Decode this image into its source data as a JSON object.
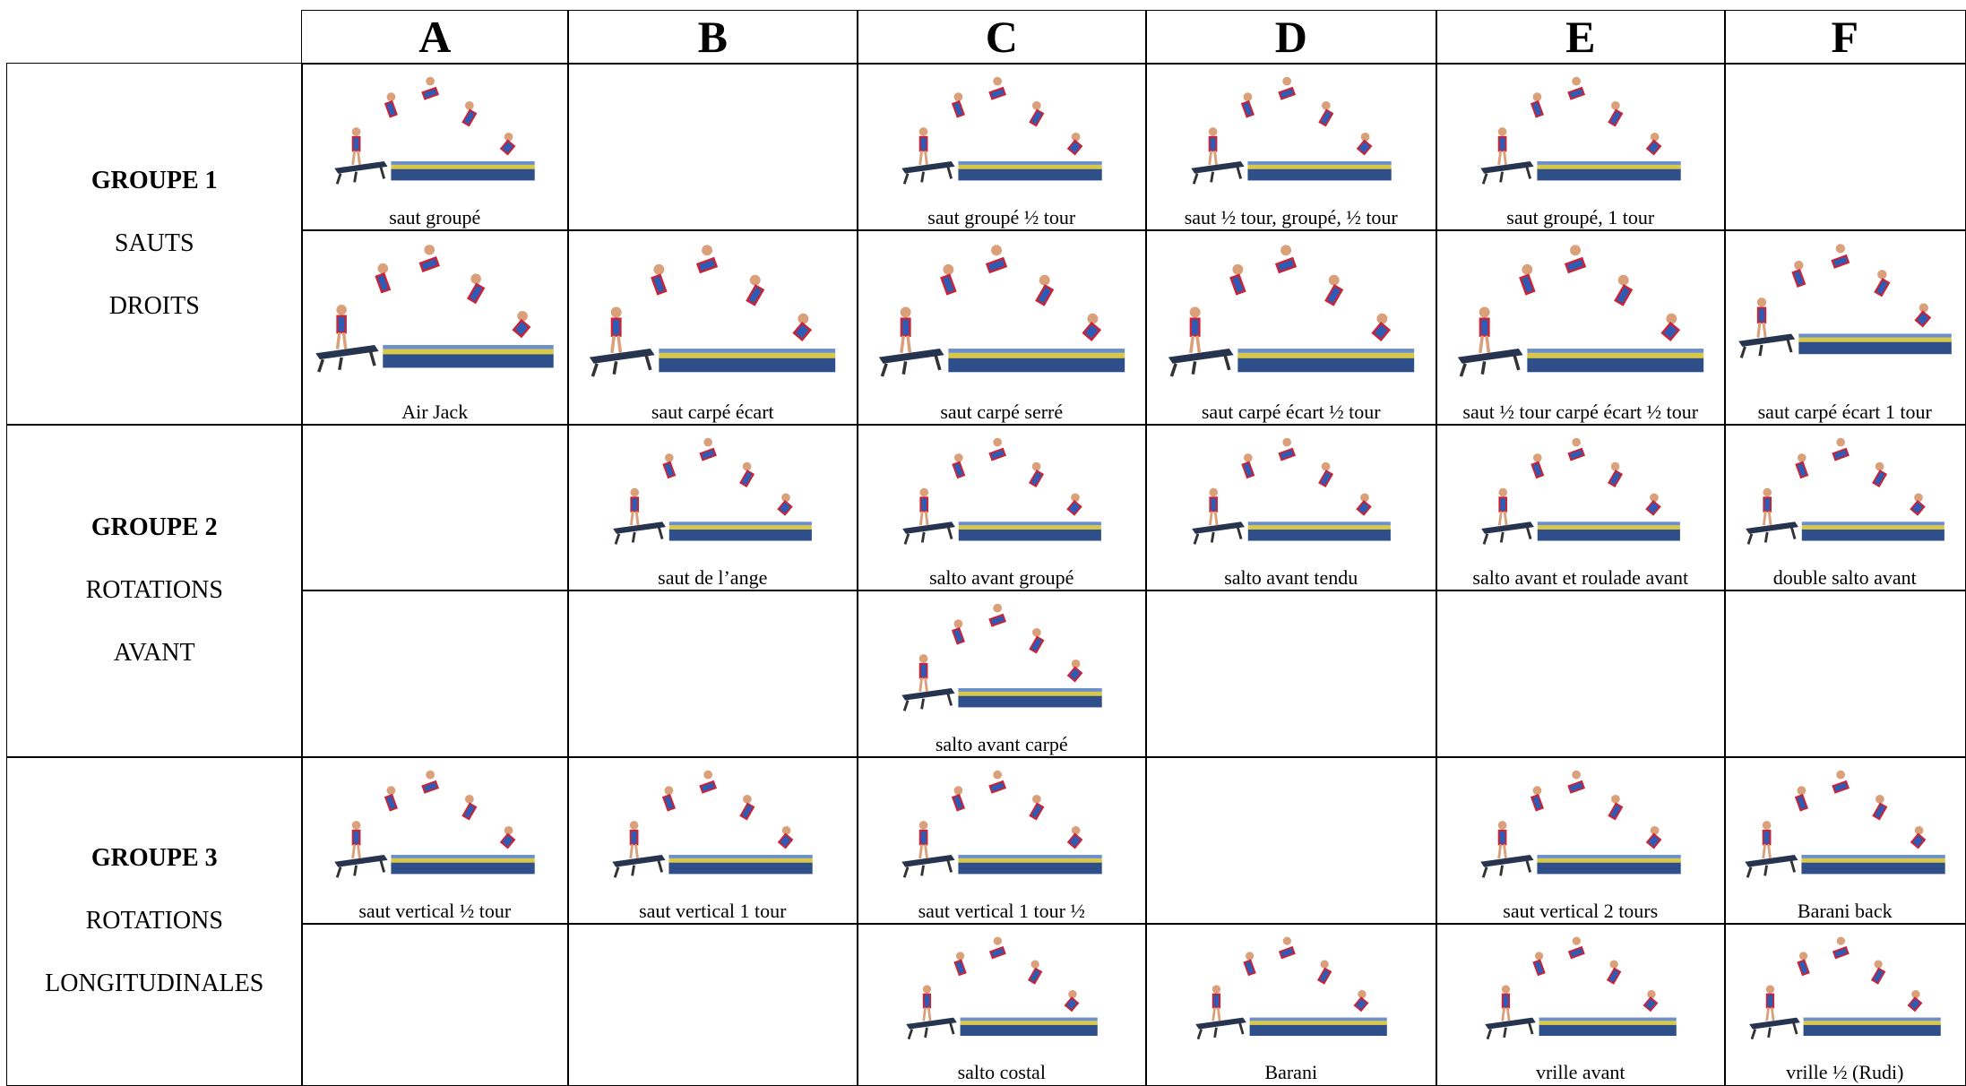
{
  "header": {
    "columns": [
      "A",
      "B",
      "C",
      "D",
      "E",
      "F"
    ]
  },
  "groups": [
    {
      "title": "GROUPE 1",
      "lines": [
        "SAUTS",
        "DROITS"
      ],
      "rows": [
        [
          "saut groupé",
          null,
          "saut groupé ½ tour",
          "saut ½ tour, groupé, ½ tour",
          "saut groupé, 1 tour",
          null
        ],
        [
          "Air Jack",
          "saut carpé écart",
          "saut carpé serré",
          "saut carpé écart ½ tour",
          "saut ½ tour carpé écart ½ tour",
          "saut carpé écart 1 tour"
        ]
      ]
    },
    {
      "title": "GROUPE 2",
      "lines": [
        "ROTATIONS",
        "AVANT"
      ],
      "rows": [
        [
          null,
          "saut de l’ange",
          "salto avant groupé",
          "salto avant tendu",
          "salto avant et roulade avant",
          "double salto avant"
        ],
        [
          null,
          null,
          "salto avant carpé",
          null,
          null,
          null
        ]
      ]
    },
    {
      "title": "GROUPE 3",
      "lines": [
        "ROTATIONS",
        "LONGITUDINALES"
      ],
      "rows": [
        [
          "saut vertical ½ tour",
          "saut vertical 1 tour",
          "saut vertical 1 tour ½",
          null,
          "saut vertical 2 tours",
          "Barani back"
        ],
        [
          null,
          null,
          "salto costal",
          "Barani",
          "vrille avant",
          "vrille ½ (Rudi)"
        ]
      ]
    }
  ]
}
